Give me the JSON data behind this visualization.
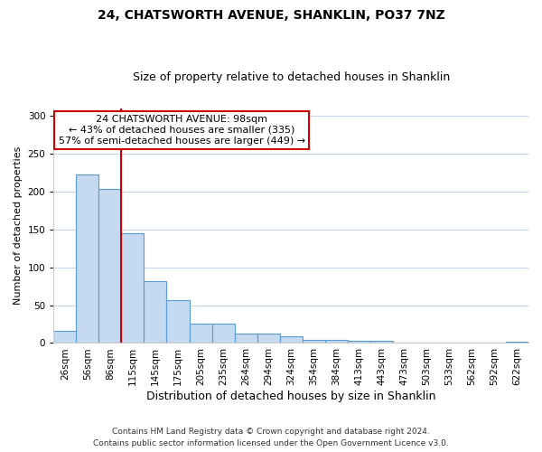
{
  "title": "24, CHATSWORTH AVENUE, SHANKLIN, PO37 7NZ",
  "subtitle": "Size of property relative to detached houses in Shanklin",
  "xlabel": "Distribution of detached houses by size in Shanklin",
  "ylabel": "Number of detached properties",
  "bin_labels": [
    "26sqm",
    "56sqm",
    "86sqm",
    "115sqm",
    "145sqm",
    "175sqm",
    "205sqm",
    "235sqm",
    "264sqm",
    "294sqm",
    "324sqm",
    "354sqm",
    "384sqm",
    "413sqm",
    "443sqm",
    "473sqm",
    "503sqm",
    "533sqm",
    "562sqm",
    "592sqm",
    "622sqm"
  ],
  "bar_heights": [
    16,
    222,
    203,
    145,
    82,
    57,
    26,
    26,
    13,
    13,
    9,
    4,
    4,
    3,
    3,
    1,
    1,
    1,
    1,
    1,
    2
  ],
  "bar_color": "#c5d9f0",
  "bar_edge_color": "#5b9bd5",
  "vline_position": 2.5,
  "vline_color": "#cc0000",
  "ylim": [
    0,
    310
  ],
  "yticks": [
    0,
    50,
    100,
    150,
    200,
    250,
    300
  ],
  "annotation_title": "24 CHATSWORTH AVENUE: 98sqm",
  "annotation_line1": "← 43% of detached houses are smaller (335)",
  "annotation_line2": "57% of semi-detached houses are larger (449) →",
  "annotation_box_facecolor": "#ffffff",
  "annotation_box_edgecolor": "#cc0000",
  "footer1": "Contains HM Land Registry data © Crown copyright and database right 2024.",
  "footer2": "Contains public sector information licensed under the Open Government Licence v3.0.",
  "background_color": "#ffffff",
  "grid_color": "#c8d4e8",
  "title_fontsize": 10,
  "subtitle_fontsize": 9,
  "ylabel_fontsize": 8,
  "xlabel_fontsize": 9,
  "tick_fontsize": 7.5,
  "annotation_fontsize": 8,
  "footer_fontsize": 6.5
}
